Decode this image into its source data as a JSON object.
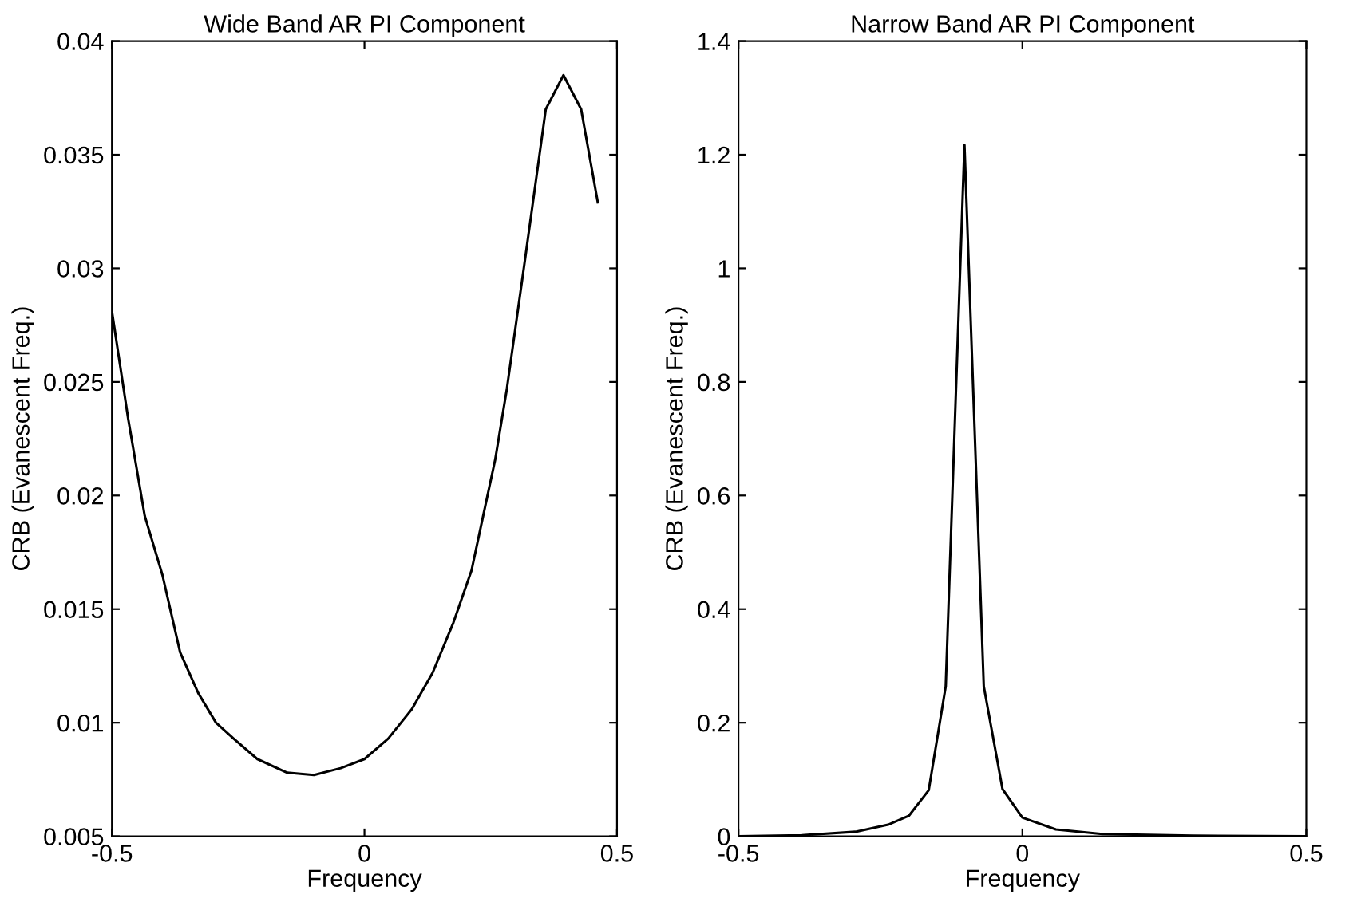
{
  "chart_data": [
    {
      "type": "line",
      "title": "Wide Band AR PI Component",
      "xlabel": "Frequency",
      "ylabel": "CRB (Evanescent Freq.)",
      "xlim": [
        -0.5,
        0.5
      ],
      "xticks": [
        -0.5,
        0,
        0.5
      ],
      "ylim": [
        0.005,
        0.04
      ],
      "yticks": [
        0.005,
        0.01,
        0.015,
        0.02,
        0.025,
        0.03,
        0.035,
        0.04
      ],
      "grid": false,
      "legend": false,
      "marker": "none",
      "line_style": "solid",
      "series": [
        {
          "color": "#000000",
          "x": [
            -0.5,
            -0.468,
            -0.435,
            -0.4,
            -0.365,
            -0.329,
            -0.294,
            -0.259,
            -0.212,
            -0.153,
            -0.1,
            -0.047,
            0,
            0.047,
            0.094,
            0.135,
            0.176,
            0.212,
            0.235,
            0.259,
            0.282,
            0.318,
            0.359,
            0.394,
            0.429,
            0.462
          ],
          "values": [
            0.0281,
            0.0234,
            0.0191,
            0.0165,
            0.0131,
            0.0113,
            0.01,
            0.0093,
            0.0084,
            0.0078,
            0.0077,
            0.008,
            0.0084,
            0.0093,
            0.0106,
            0.0122,
            0.0144,
            0.0167,
            0.0191,
            0.0216,
            0.0247,
            0.0304,
            0.037,
            0.0385,
            0.037,
            0.0329
          ]
        }
      ]
    },
    {
      "type": "line",
      "title": "Narrow Band AR PI Component",
      "xlabel": "Frequency",
      "ylabel": "CRB (Evanescent Freq.)",
      "xlim": [
        -0.5,
        0.5
      ],
      "xticks": [
        -0.5,
        0,
        0.5
      ],
      "ylim": [
        0,
        1.4
      ],
      "yticks": [
        0,
        0.2,
        0.4,
        0.6,
        0.8,
        1,
        1.2,
        1.4
      ],
      "grid": false,
      "legend": false,
      "marker": "none",
      "line_style": "solid",
      "series": [
        {
          "color": "#000000",
          "x": [
            -0.5,
            -0.388,
            -0.294,
            -0.235,
            -0.2,
            -0.165,
            -0.135,
            -0.102,
            -0.068,
            -0.035,
            0,
            0.059,
            0.141,
            0.3,
            0.5
          ],
          "values": [
            0,
            0.002,
            0.008,
            0.021,
            0.036,
            0.081,
            0.264,
            1.217,
            0.264,
            0.083,
            0.033,
            0.012,
            0.004,
            0.001,
            0
          ]
        }
      ]
    }
  ]
}
